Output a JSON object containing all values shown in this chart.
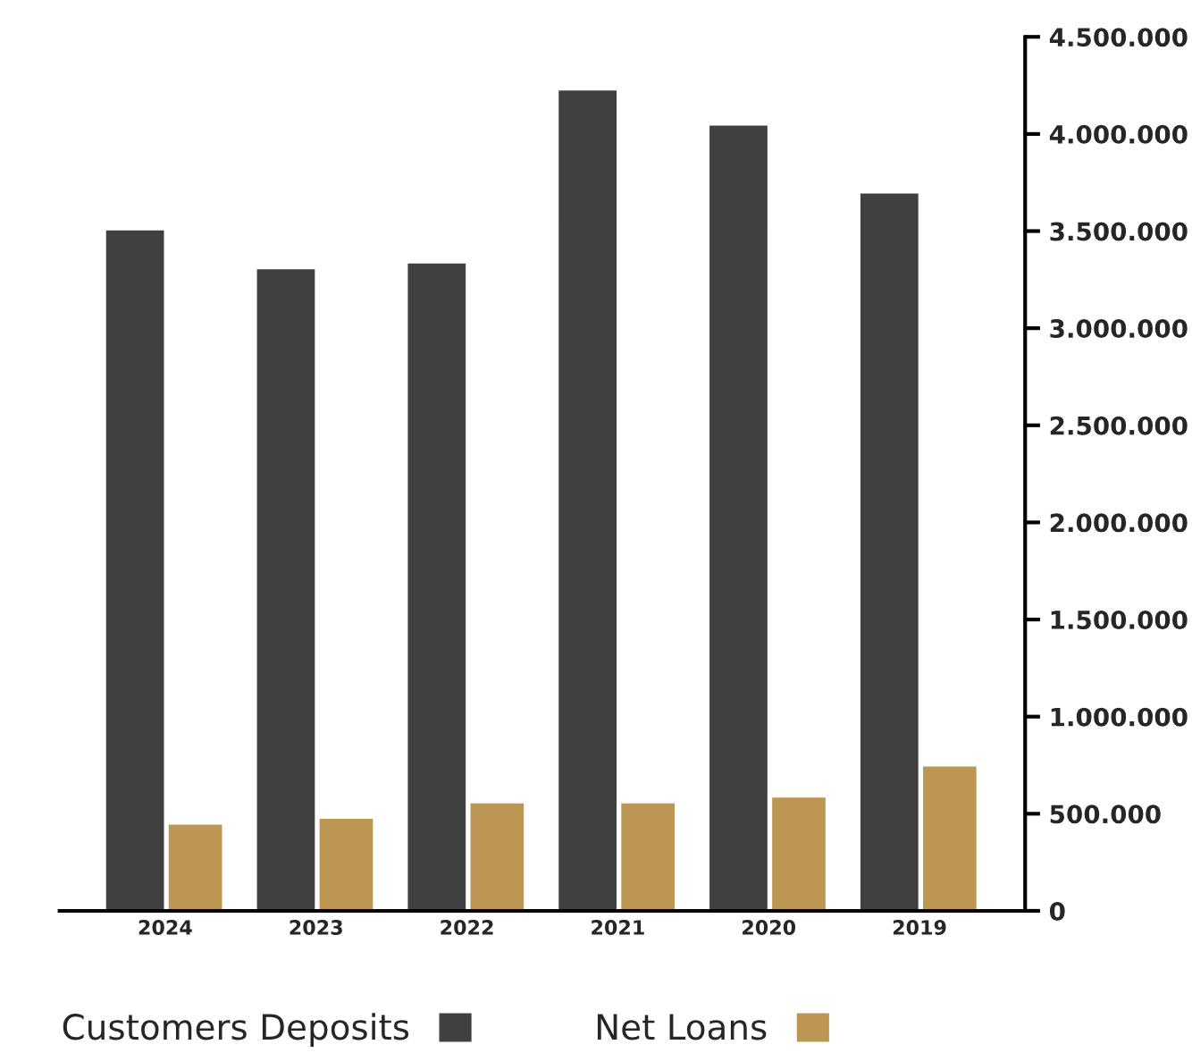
{
  "chart_data": {
    "type": "bar",
    "categories": [
      "2024",
      "2023",
      "2022",
      "2021",
      "2020",
      "2019"
    ],
    "series": [
      {
        "name": "Customers Deposits",
        "color": "#404041",
        "values": [
          3510000,
          3310000,
          3340000,
          4230000,
          4050000,
          3700000
        ]
      },
      {
        "name": "Net Loans",
        "color": "#bd9752",
        "values": [
          450000,
          480000,
          560000,
          560000,
          590000,
          750000
        ]
      }
    ],
    "ylim": [
      0,
      4500000
    ],
    "yticks": [
      0,
      {
        "value": 500000,
        "label": "500.000"
      },
      {
        "value": 1000000,
        "label": "1.000.000"
      },
      {
        "value": 1500000,
        "label": "1.500.000"
      },
      {
        "value": 2000000,
        "label": "2.000.000"
      },
      {
        "value": 2500000,
        "label": "2.500.000"
      },
      {
        "value": 3000000,
        "label": "3.000.000"
      },
      {
        "value": 3500000,
        "label": "3.500.000"
      },
      {
        "value": 4000000,
        "label": "4.000.000"
      },
      {
        "value": 4500000,
        "label": "4.500.000"
      }
    ],
    "grid": false,
    "legend": "bottom"
  }
}
